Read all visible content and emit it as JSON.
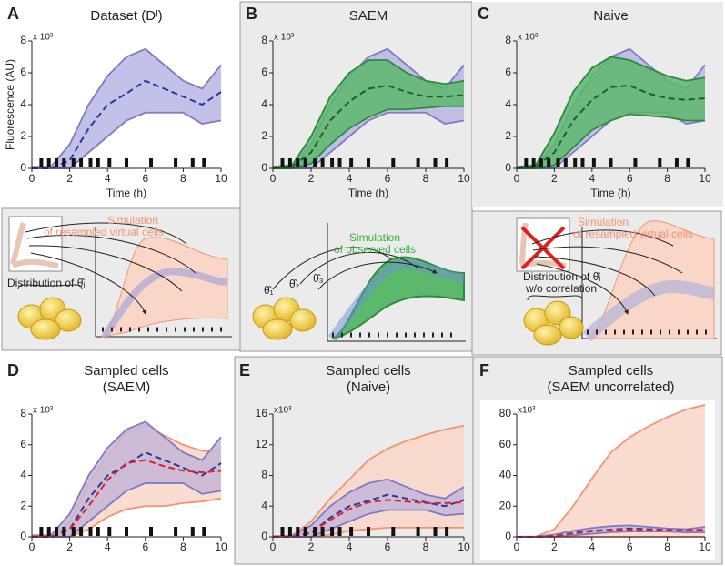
{
  "chart_data": [
    {
      "type": "band",
      "panel": "A",
      "title": [
        "Dataset (Dᴵ)"
      ],
      "xlabel": "Time (h)",
      "ylabel": "Fluorescence (AU)",
      "y_multiplier": "x 10³",
      "x": [
        0,
        1,
        2,
        3,
        4,
        5,
        6,
        7,
        8,
        9,
        10
      ],
      "xlim": [
        0,
        10
      ],
      "xticks": [
        0,
        2,
        4,
        6,
        8,
        10
      ],
      "ylim": [
        0,
        8
      ],
      "yticks": [
        0,
        2,
        4,
        6,
        8
      ],
      "bands": [
        {
          "color": "#7f7bc4",
          "fill": "#b9b6e3",
          "upper": [
            0.1,
            0.1,
            1.5,
            4,
            5.8,
            7,
            7.5,
            6.5,
            5.5,
            5,
            6.5
          ],
          "lower": [
            0,
            0,
            0,
            1,
            2,
            3,
            3.5,
            3.5,
            3.5,
            2.8,
            3
          ]
        }
      ],
      "series": [
        {
          "color": "#263a9c",
          "dashed": true,
          "values": [
            0,
            0,
            0.5,
            2.5,
            4,
            4.7,
            5.5,
            5,
            4.5,
            4,
            4.8
          ]
        }
      ],
      "events": [
        0.5,
        0.9,
        1.3,
        1.7,
        2.2,
        2.6,
        3.1,
        3.5,
        4.1,
        5,
        6.3,
        7.6,
        8.5,
        9.1
      ]
    },
    {
      "type": "band",
      "panel": "B",
      "title": [
        "SAEM"
      ],
      "xlabel": "Time (h)",
      "y_multiplier": "x 10³",
      "x": [
        0,
        1,
        2,
        3,
        4,
        5,
        6,
        7,
        8,
        9,
        10
      ],
      "xlim": [
        0,
        10
      ],
      "xticks": [
        0,
        2,
        4,
        6,
        8,
        10
      ],
      "ylim": [
        0,
        8
      ],
      "yticks": [
        0,
        2,
        4,
        6,
        8
      ],
      "bands": [
        {
          "color": "#7f7bc4",
          "fill": "#b9b6e3",
          "upper": [
            0.1,
            0.1,
            1.5,
            4,
            5.8,
            7,
            7.5,
            6.5,
            5.5,
            5,
            6.5
          ],
          "lower": [
            0,
            0,
            0,
            1,
            2,
            3,
            3.5,
            3.5,
            3.5,
            2.8,
            3
          ]
        },
        {
          "color": "#2e8b3e",
          "fill": "#5cb86c",
          "upper": [
            0.1,
            0.2,
            2,
            4.5,
            6,
            6.8,
            6.8,
            6,
            5.5,
            5.3,
            5.5
          ],
          "lower": [
            0,
            0,
            0.3,
            1.5,
            2.5,
            3.2,
            3.7,
            3.7,
            3.8,
            3.9,
            3.9
          ]
        }
      ],
      "series": [
        {
          "color": "#1f5e2a",
          "dashed": true,
          "values": [
            0,
            0.1,
            1,
            3,
            4.2,
            5,
            5.2,
            4.8,
            4.5,
            4.5,
            4.6
          ]
        }
      ],
      "events": [
        0.5,
        0.9,
        1.3,
        1.7,
        2.2,
        2.6,
        3.1,
        3.5,
        4.1,
        5,
        6.3,
        7.6,
        8.5,
        9.1
      ]
    },
    {
      "type": "band",
      "panel": "C",
      "title": [
        "Naive"
      ],
      "xlabel": "Time (h)",
      "y_multiplier": "x 10³",
      "x": [
        0,
        1,
        2,
        3,
        4,
        5,
        6,
        7,
        8,
        9,
        10
      ],
      "xlim": [
        0,
        10
      ],
      "xticks": [
        0,
        2,
        4,
        6,
        8,
        10
      ],
      "ylim": [
        0,
        8
      ],
      "yticks": [
        0,
        2,
        4,
        6,
        8
      ],
      "bands": [
        {
          "color": "#7f7bc4",
          "fill": "#b9b6e3",
          "upper": [
            0.1,
            0.1,
            1.5,
            4,
            5.8,
            7,
            7.5,
            6.5,
            5.5,
            5,
            6.5
          ],
          "lower": [
            0,
            0,
            0,
            1,
            2,
            3,
            3.5,
            3.5,
            3.5,
            2.8,
            3
          ]
        },
        {
          "color": "#2e8b3e",
          "fill": "#5cb86c",
          "upper": [
            0.1,
            0.2,
            2.2,
            4.8,
            6.3,
            7,
            6.8,
            6.3,
            5.8,
            5.5,
            5.7
          ],
          "lower": [
            0,
            0,
            0.2,
            1.3,
            2.4,
            3,
            3.4,
            3.3,
            3.2,
            3,
            3
          ]
        }
      ],
      "series": [
        {
          "color": "#1f5e2a",
          "dashed": true,
          "values": [
            0,
            0.1,
            1,
            3,
            4.3,
            5.1,
            5.2,
            4.7,
            4.4,
            4.3,
            4.4
          ]
        }
      ],
      "events": [
        0.5,
        0.9,
        1.3,
        1.7,
        2.2,
        2.6,
        3.1,
        3.5,
        4.1,
        5,
        6.3,
        7.6,
        8.5,
        9.1
      ]
    },
    {
      "type": "band",
      "panel": "D",
      "title": [
        "Sampled cells",
        "(SAEM)"
      ],
      "y_multiplier": "x 10³",
      "x": [
        0,
        1,
        2,
        3,
        4,
        5,
        6,
        7,
        8,
        9,
        10
      ],
      "xlim": [
        0,
        10
      ],
      "xticks": [
        0,
        2,
        4,
        6,
        8,
        10
      ],
      "ylim": [
        0,
        8
      ],
      "yticks": [
        0,
        2,
        4,
        6,
        8
      ],
      "bands": [
        {
          "color": "#f29473",
          "fill": "#f9d6c8",
          "upper": [
            0,
            0,
            1,
            3.5,
            5.3,
            6.8,
            7.3,
            6.6,
            6,
            5.6,
            5.6
          ],
          "lower": [
            0,
            0,
            0,
            0.5,
            1.3,
            1.8,
            2,
            2,
            2.2,
            2.3,
            2.5
          ]
        },
        {
          "color": "#7f7bc4",
          "fill": "#c6b6d8",
          "upper": [
            0.1,
            0.1,
            1.5,
            4,
            5.8,
            7,
            7.5,
            6.5,
            5.5,
            5,
            6.5
          ],
          "lower": [
            0,
            0,
            0,
            1,
            2,
            3,
            3.5,
            3.5,
            3.5,
            2.8,
            3
          ]
        }
      ],
      "series": [
        {
          "color": "#263a9c",
          "dashed": true,
          "values": [
            0,
            0,
            0.5,
            2.5,
            4,
            4.7,
            5.5,
            5,
            4.5,
            4,
            4.8
          ]
        },
        {
          "color": "#e0202a",
          "dashed": true,
          "values": [
            0,
            0,
            0.5,
            2,
            3.7,
            4.8,
            5,
            4.6,
            4.3,
            4.2,
            4.3
          ]
        }
      ],
      "events": [
        0.5,
        0.9,
        1.3,
        1.7,
        2.2,
        2.6,
        3.1,
        3.5,
        4.1,
        5,
        6.3,
        7.6,
        8.5,
        9.1
      ]
    },
    {
      "type": "band",
      "panel": "E",
      "title": [
        "Sampled cells",
        "(Naive)"
      ],
      "y_multiplier": "x10³",
      "x": [
        0,
        1,
        2,
        3,
        4,
        5,
        6,
        7,
        8,
        9,
        10
      ],
      "xlim": [
        0,
        10
      ],
      "xticks": [
        0,
        2,
        4,
        6,
        8,
        10
      ],
      "ylim": [
        0,
        16
      ],
      "yticks": [
        0,
        4,
        8,
        12,
        16
      ],
      "bands": [
        {
          "color": "#f29473",
          "fill": "#f9d6c8",
          "upper": [
            0,
            0.2,
            2,
            5,
            7.5,
            10,
            11.5,
            12.5,
            13.3,
            14,
            14.5
          ],
          "lower": [
            0,
            0,
            0,
            0.3,
            0.8,
            1,
            1.2,
            1.2,
            1.2,
            1.2,
            1.2
          ]
        },
        {
          "color": "#7f7bc4",
          "fill": "#c6b6d8",
          "upper": [
            0.1,
            0.1,
            1.5,
            4,
            5.8,
            7,
            7.5,
            6.5,
            5.5,
            5,
            6.5
          ],
          "lower": [
            0,
            0,
            0,
            1,
            2,
            3,
            3.5,
            3.5,
            3.5,
            2.8,
            3
          ]
        }
      ],
      "series": [
        {
          "color": "#263a9c",
          "dashed": true,
          "values": [
            0,
            0,
            0.5,
            2.5,
            4,
            4.7,
            5.5,
            5,
            4.5,
            4,
            4.8
          ]
        },
        {
          "color": "#e0202a",
          "dashed": true,
          "values": [
            0,
            0,
            0.6,
            2.2,
            3.6,
            4.5,
            4.8,
            4.6,
            4.4,
            4.4,
            4.5
          ]
        }
      ],
      "events": [
        0.5,
        0.9,
        1.3,
        1.7,
        2.2,
        2.6,
        3.1,
        3.5,
        4.1,
        5,
        6.3,
        7.6,
        8.5,
        9.1
      ]
    },
    {
      "type": "band",
      "panel": "F",
      "title": [
        "Sampled cells",
        "(SAEM uncorrelated)"
      ],
      "y_multiplier": "x10³",
      "x": [
        0,
        1,
        2,
        3,
        4,
        5,
        6,
        7,
        8,
        9,
        10
      ],
      "xlim": [
        0,
        10
      ],
      "xticks": [
        0,
        2,
        4,
        6,
        8,
        10
      ],
      "ylim": [
        0,
        80
      ],
      "yticks": [
        0,
        20,
        40,
        60,
        80
      ],
      "bands": [
        {
          "color": "#f29473",
          "fill": "#f9d6c8",
          "upper": [
            0,
            0.1,
            5,
            20,
            38,
            55,
            65,
            72,
            78,
            83,
            86
          ],
          "lower": [
            0,
            0,
            0,
            0,
            0,
            0,
            0,
            0,
            0,
            0,
            0
          ]
        },
        {
          "color": "#7f7bc4",
          "fill": "#c6b6d8",
          "upper": [
            0.1,
            0.1,
            1.5,
            4,
            5.8,
            7,
            7.5,
            6.5,
            5.5,
            5,
            6.5
          ],
          "lower": [
            0,
            0,
            0,
            1,
            2,
            3,
            3.5,
            3.5,
            3.5,
            2.8,
            3
          ]
        }
      ],
      "series": [
        {
          "color": "#263a9c",
          "dashed": true,
          "values": [
            0,
            0,
            0.5,
            2.5,
            4,
            4.7,
            5.5,
            5,
            4.5,
            4,
            4.8
          ]
        },
        {
          "color": "#e0202a",
          "dashed": true,
          "values": [
            0,
            0,
            0.6,
            2.2,
            3.6,
            4.5,
            4.8,
            4.6,
            4.4,
            4.4,
            4.5
          ]
        }
      ]
    }
  ],
  "insets": {
    "left": {
      "simulation": [
        "Simulation",
        "of resampled virtual cells"
      ],
      "distribution": "Distribution of θ̂ᵢ"
    },
    "middle": {
      "simulation": [
        "Simulation",
        "of observed cells"
      ],
      "params": [
        "θ̂₁",
        "θ̂₂",
        "θ̂₃"
      ]
    },
    "right": {
      "simulation": [
        "Simulation",
        "of resampled virtual cells"
      ],
      "distribution": [
        "Distribution of θ̂ᵢ",
        "w/o correlation"
      ]
    }
  }
}
